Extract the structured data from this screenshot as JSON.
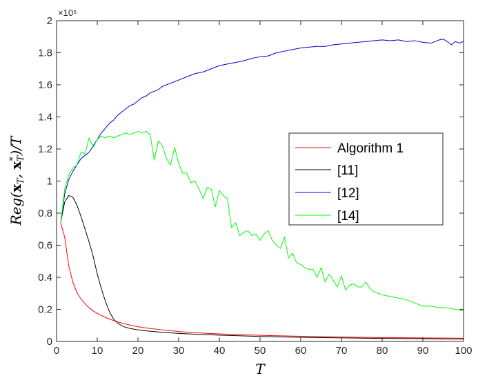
{
  "chart_data": {
    "type": "line",
    "xlabel": "T",
    "ylabel": "Reg(x_T, x_T^*)/T",
    "xlim": [
      0,
      100
    ],
    "ylim": [
      0,
      200000
    ],
    "xticks": [
      0,
      10,
      20,
      30,
      40,
      50,
      60,
      70,
      80,
      90,
      100
    ],
    "xtick_labels": [
      "0",
      "10",
      "20",
      "30",
      "40",
      "50",
      "60",
      "70",
      "80",
      "90",
      "100"
    ],
    "yticks": [
      0,
      20000,
      40000,
      60000,
      80000,
      100000,
      120000,
      140000,
      160000,
      180000,
      200000
    ],
    "ytick_labels": [
      "0",
      "0.2",
      "0.4",
      "0.6",
      "0.8",
      "1",
      "1.2",
      "1.4",
      "1.6",
      "1.8",
      "2"
    ],
    "y_exponent_label": "×10⁵",
    "grid": false,
    "legend_position": "right-middle",
    "series": [
      {
        "name": "Algorithm 1",
        "color": "#ff0000",
        "x": [
          1,
          2,
          3,
          4,
          5,
          6,
          7,
          8,
          9,
          10,
          12,
          14,
          16,
          18,
          20,
          22,
          25,
          30,
          35,
          40,
          50,
          60,
          70,
          80,
          90,
          100
        ],
        "y": [
          74000,
          65000,
          47000,
          37000,
          30500,
          26500,
          23500,
          21000,
          19000,
          17500,
          15000,
          13000,
          11500,
          10200,
          9200,
          8400,
          7500,
          6200,
          5300,
          4700,
          3800,
          3200,
          2800,
          2400,
          2200,
          2000
        ]
      },
      {
        "name": "[11]",
        "color": "#000000",
        "x": [
          1,
          2,
          3,
          4,
          5,
          6,
          7,
          8,
          9,
          10,
          11,
          12,
          13,
          14,
          15,
          16,
          17,
          18,
          20,
          22,
          25,
          30,
          35,
          40,
          50,
          60,
          70,
          80,
          90,
          100
        ],
        "y": [
          74000,
          87000,
          91000,
          90000,
          85000,
          78000,
          70000,
          62000,
          53000,
          42000,
          33000,
          25000,
          18500,
          14000,
          11500,
          9800,
          8800,
          8100,
          7200,
          6600,
          5900,
          5000,
          4400,
          3900,
          3100,
          2600,
          2200,
          1900,
          1700,
          1500
        ]
      },
      {
        "name": "[12]",
        "color": "#0000cc",
        "x": [
          1,
          2,
          3,
          4,
          5,
          6,
          7,
          8,
          9,
          10,
          11,
          12,
          13,
          14,
          15,
          16,
          17,
          18,
          19,
          20,
          21,
          22,
          23,
          24,
          25,
          26,
          27,
          28,
          29,
          30,
          32,
          34,
          36,
          38,
          40,
          42,
          44,
          46,
          48,
          50,
          52,
          54,
          56,
          58,
          60,
          62,
          64,
          66,
          68,
          70,
          72,
          74,
          76,
          78,
          80,
          82,
          84,
          86,
          88,
          90,
          92,
          94,
          95,
          96,
          97,
          98,
          99,
          100
        ],
        "y": [
          74000,
          92000,
          101000,
          106000,
          110000,
          114000,
          116000,
          118000,
          122000,
          126000,
          130000,
          133000,
          136000,
          138000,
          141000,
          143000,
          145000,
          147000,
          148000,
          150000,
          152000,
          153000,
          155000,
          156000,
          157000,
          159000,
          160000,
          161000,
          162000,
          163000,
          165000,
          167000,
          168000,
          170000,
          172000,
          173000,
          174000,
          175000,
          176500,
          177500,
          178000,
          180000,
          181000,
          182000,
          183000,
          183500,
          184000,
          184000,
          185000,
          185500,
          186000,
          186500,
          187000,
          187500,
          188000,
          187500,
          188000,
          187000,
          187500,
          186500,
          186000,
          188000,
          188500,
          187000,
          185000,
          187000,
          186000,
          187000
        ]
      },
      {
        "name": "[14]",
        "color": "#00ff00",
        "x": [
          1,
          2,
          3,
          4,
          5,
          6,
          7,
          8,
          9,
          10,
          11,
          12,
          13,
          14,
          15,
          16,
          17,
          18,
          19,
          20,
          21,
          22,
          23,
          24,
          25,
          26,
          27,
          28,
          29,
          30,
          31,
          32,
          33,
          34,
          35,
          36,
          37,
          38,
          39,
          40,
          41,
          42,
          43,
          44,
          45,
          46,
          47,
          48,
          49,
          50,
          51,
          52,
          53,
          54,
          55,
          56,
          57,
          58,
          59,
          60,
          61,
          62,
          63,
          64,
          65,
          66,
          67,
          68,
          69,
          70,
          71,
          72,
          73,
          74,
          75,
          76,
          77,
          78,
          79,
          80,
          82,
          84,
          86,
          88,
          90,
          92,
          94,
          96,
          98,
          100
        ],
        "y": [
          74000,
          95000,
          104000,
          108000,
          110000,
          118000,
          117000,
          127000,
          121000,
          126000,
          128000,
          127000,
          128000,
          127000,
          128000,
          129000,
          130000,
          129000,
          130000,
          131000,
          130000,
          131000,
          129000,
          113000,
          125000,
          122000,
          114000,
          110000,
          121000,
          111000,
          105000,
          105000,
          99000,
          100000,
          95000,
          89000,
          96000,
          95000,
          84000,
          94000,
          91000,
          89000,
          71000,
          74000,
          66000,
          68000,
          69000,
          66000,
          67000,
          63000,
          67000,
          69000,
          63000,
          60000,
          58000,
          65000,
          52000,
          55000,
          49000,
          48000,
          46000,
          45000,
          45000,
          40000,
          46000,
          37000,
          42000,
          38000,
          34000,
          41000,
          32000,
          35000,
          36000,
          34000,
          34000,
          37000,
          33000,
          31000,
          30000,
          29000,
          28000,
          27000,
          26000,
          24000,
          22000,
          22000,
          21000,
          21000,
          20000,
          19000
        ]
      }
    ]
  }
}
